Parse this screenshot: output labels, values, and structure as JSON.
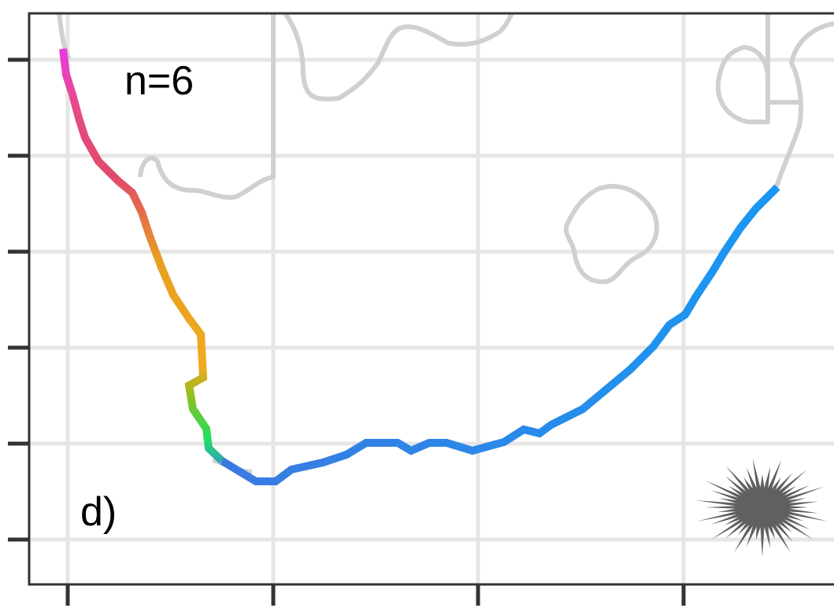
{
  "panel_label": "d)",
  "annotation": "n=6"
}
